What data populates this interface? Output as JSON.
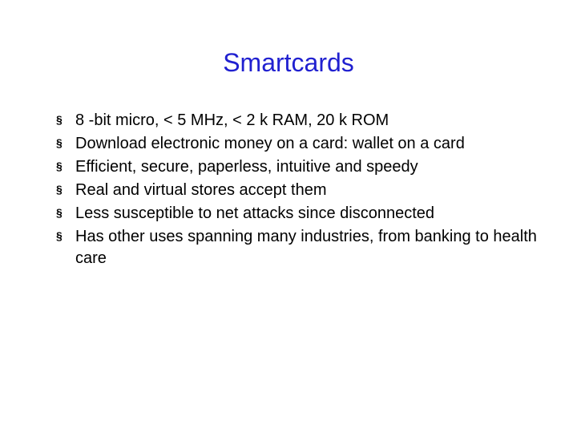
{
  "slide": {
    "title": "Smartcards",
    "title_color": "#2020d0",
    "title_fontsize": 32,
    "body_fontsize": 20,
    "body_color": "#000000",
    "background_color": "#ffffff",
    "bullet_marker": "§",
    "bullets": [
      "8 -bit micro, < 5 MHz, < 2 k RAM, 20 k ROM",
      "Download electronic money on a card: wallet on a card",
      "Efficient, secure, paperless, intuitive and speedy",
      "Real and virtual stores accept them",
      "Less susceptible to net attacks since disconnected",
      "Has other uses spanning many industries, from banking to health care"
    ]
  }
}
